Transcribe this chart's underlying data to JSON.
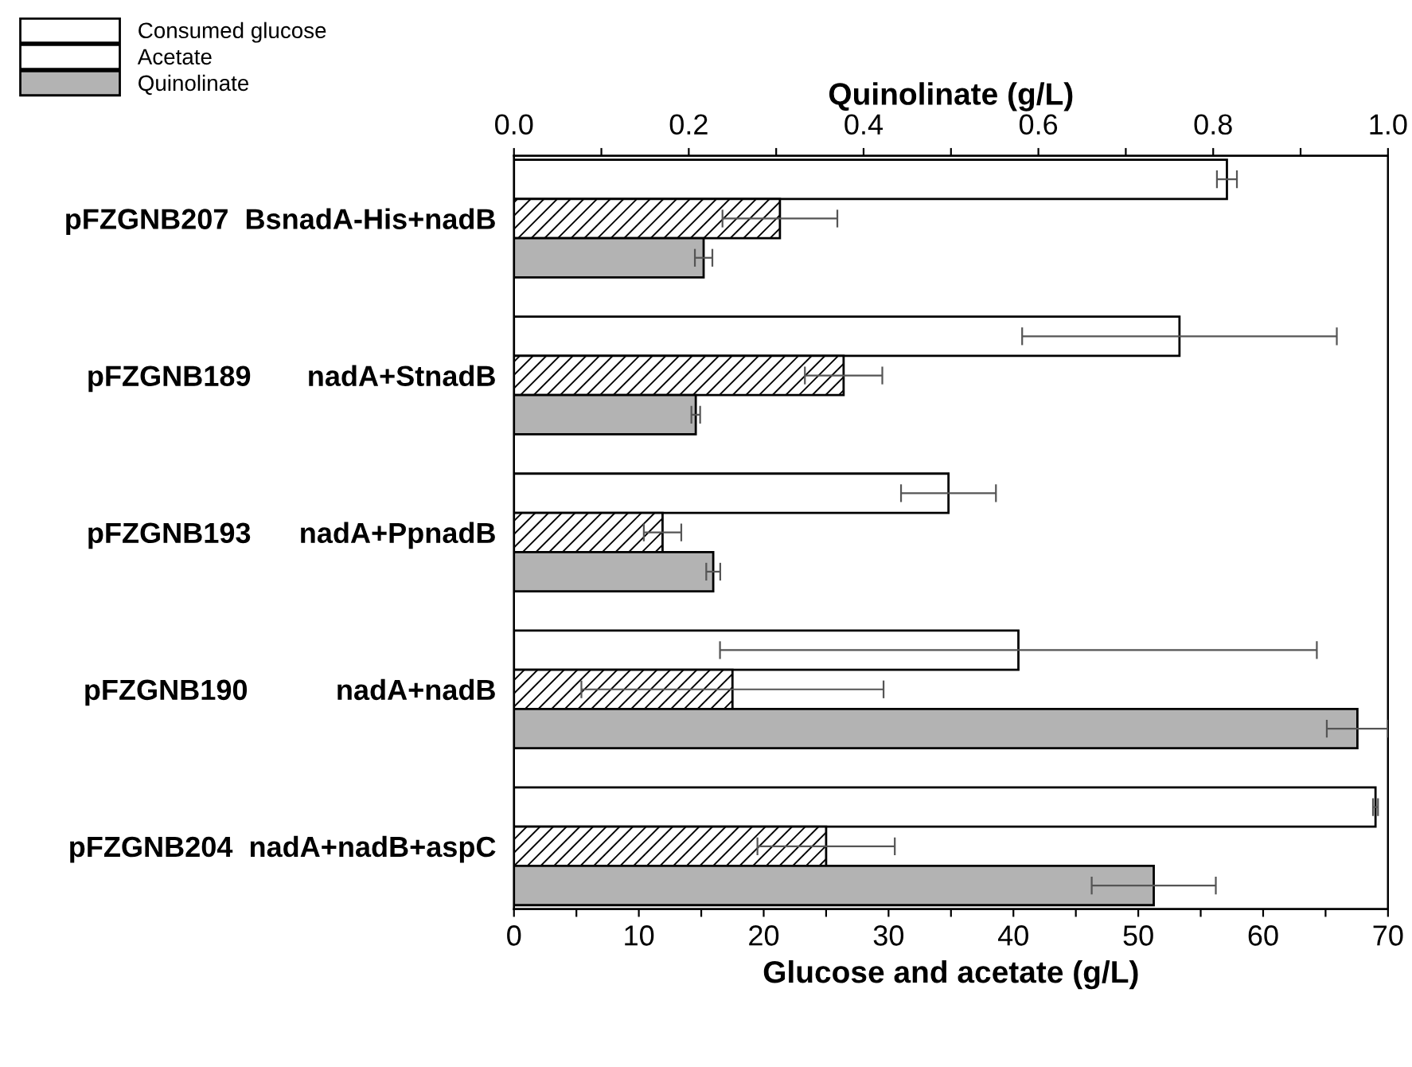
{
  "chart_data": {
    "type": "bar",
    "orientation": "horizontal",
    "xlabel": "Glucose and acetate (g/L)",
    "x2label": "Quinolinate (g/L)",
    "categories": [
      "pFZGNB207  BsnadA-His+nadB",
      "pFZGNB189       nadA+StnadB",
      "pFZGNB193      nadA+PpnadB",
      "pFZGNB190           nadA+nadB",
      "pFZGNB204  nadA+nadB+aspC"
    ],
    "series": [
      {
        "name": "Consumed glucose",
        "color": "#ffffff",
        "values": [
          57.1,
          53.3,
          34.8,
          40.4,
          69.0
        ],
        "errors": [
          0.8,
          12.6,
          3.8,
          23.9,
          0.2
        ]
      },
      {
        "name": "Acetate",
        "color": "#ffffff",
        "values": [
          21.3,
          26.4,
          11.9,
          17.5,
          25.0
        ],
        "errors": [
          4.6,
          3.1,
          1.5,
          12.1,
          5.5
        ]
      },
      {
        "name": "Quinolinate",
        "color": "#b3b3b3",
        "axis": "x2",
        "values": [
          0.217,
          0.208,
          0.228,
          0.965,
          0.732
        ],
        "errors": [
          0.01,
          0.005,
          0.008,
          0.035,
          0.071
        ]
      }
    ],
    "xlim": [
      0,
      70
    ],
    "xticks": [
      0,
      {
        "value": 5,
        "label": null
      },
      10,
      {
        "value": 15,
        "label": null
      },
      20,
      {
        "value": 25,
        "label": null
      },
      30,
      {
        "value": 35,
        "label": null
      },
      40,
      {
        "value": 45,
        "label": null
      },
      50,
      {
        "value": 55,
        "label": null
      },
      60,
      {
        "value": 65,
        "label": null
      },
      70
    ],
    "x2lim": [
      0,
      1.0
    ],
    "x2ticks": [
      {
        "value": 0,
        "label": "0.0"
      },
      {
        "value": 0.1,
        "label": null
      },
      0.2,
      {
        "value": 0.3,
        "label": null
      },
      0.4,
      {
        "value": 0.5,
        "label": null
      },
      0.6,
      {
        "value": 0.7,
        "label": null
      },
      0.8,
      {
        "value": 0.9,
        "label": null
      },
      {
        "value": 1.0,
        "label": "1.0"
      }
    ],
    "grid": false,
    "legend": "top left"
  }
}
